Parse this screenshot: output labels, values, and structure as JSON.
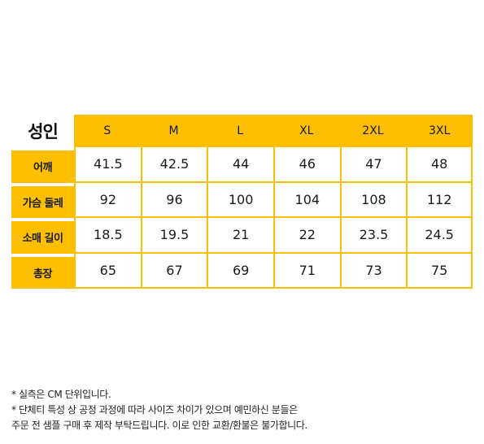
{
  "chart": {
    "title": "성인",
    "sizes": [
      "S",
      "M",
      "L",
      "XL",
      "2XL",
      "3XL"
    ],
    "rows": [
      {
        "label": "어깨",
        "values": [
          "41.5",
          "42.5",
          "44",
          "46",
          "47",
          "48"
        ]
      },
      {
        "label": "가슴 둘레",
        "values": [
          "92",
          "96",
          "100",
          "104",
          "108",
          "112"
        ]
      },
      {
        "label": "소매 길이",
        "values": [
          "18.5",
          "19.5",
          "21",
          "22",
          "23.5",
          "24.5"
        ]
      },
      {
        "label": "총장",
        "values": [
          "65",
          "67",
          "69",
          "71",
          "73",
          "75"
        ]
      }
    ]
  },
  "notes": [
    "* 실측은 CM 단위입니다.",
    "* 단체티 특성 상 공정 과정에 따라 사이즈 차이가 있으며 예민하신 분들은",
    "주문 전 샘플 구매 후 제작 부탁드립니다. 이로 인한 교환/환불은 불가합니다."
  ],
  "colors": {
    "accent": "#fdbf01",
    "text": "#1a1a1a",
    "background": "#ffffff"
  }
}
